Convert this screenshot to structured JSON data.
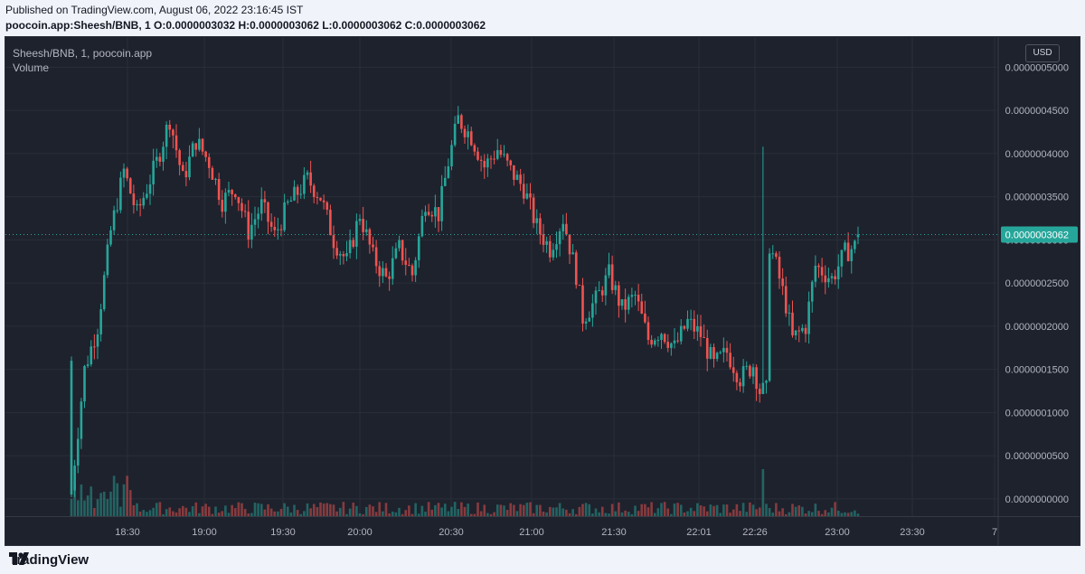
{
  "header": {
    "published": "Published on TradingView.com, August 06, 2022 23:16:45 IST",
    "symbol": "poocoin.app:Sheesh/BNB, 1",
    "o": "O:0.0000003032",
    "h": "H:0.0000003062",
    "l": "L:0.0000003062",
    "c": "C:0.0000003062"
  },
  "legend": {
    "title": "Sheesh/BNB, 1, poocoin.app",
    "volume": "Volume"
  },
  "currency_button": "USD",
  "last_price_label": "0.0000003062",
  "footer": {
    "brand": "TradingView"
  },
  "colors": {
    "up": "#26a69a",
    "down": "#ef5350",
    "background": "#1e222d",
    "grid": "#2a2e39",
    "axis_text": "#b2b5be"
  },
  "chart_data": {
    "type": "candlestick",
    "title": "Sheesh/BNB, 1, poocoin.app",
    "x_tick_labels": [
      "18:30",
      "19:00",
      "19:30",
      "20:00",
      "20:30",
      "21:00",
      "21:30",
      "22:01",
      "22:26",
      "23:00",
      "23:30",
      "7"
    ],
    "y_tick_labels": [
      "0.0000005000",
      "0.0000004500",
      "0.0000004000",
      "0.0000003500",
      "0.0000003000",
      "0.0000002500",
      "0.0000002000",
      "0.0000001500",
      "0.0000001000",
      "0.0000000500",
      "0.0000000000"
    ],
    "y_tick_values": [
      5e-07,
      4.5e-07,
      4e-07,
      3.5e-07,
      3e-07,
      2.5e-07,
      2e-07,
      1.5e-07,
      1e-07,
      5e-08,
      0
    ],
    "ylim": [
      -2e-08,
      5.35e-07
    ],
    "last_price": 3.062e-07,
    "grid": true,
    "ohlc_waypoints": [
      [
        1e-08,
        0,
        1.5e-07
      ],
      [
        1.5e-07,
        4,
        1.65e-07
      ],
      [
        2e-07,
        8,
        2.15e-07
      ],
      [
        3.1e-07,
        12,
        3.3e-07
      ],
      [
        3.8e-07,
        16,
        3.9e-07
      ],
      [
        3.3e-07,
        20,
        3.4e-07
      ],
      [
        3.9e-07,
        26,
        4e-07
      ],
      [
        4.4e-07,
        30,
        4.55e-07
      ],
      [
        3.7e-07,
        34,
        3.8e-07
      ],
      [
        4.15e-07,
        38,
        4.25e-07
      ],
      [
        3.9e-07,
        42,
        3.95e-07
      ],
      [
        3.45e-07,
        46,
        3.55e-07
      ],
      [
        3.6e-07,
        50,
        3.65e-07
      ],
      [
        3.1e-07,
        54,
        3.2e-07
      ],
      [
        3.4e-07,
        58,
        3.45e-07
      ],
      [
        3.05e-07,
        62,
        3.15e-07
      ],
      [
        3.4e-07,
        66,
        3.5e-07
      ],
      [
        3.7e-07,
        72,
        3.8e-07
      ],
      [
        3.5e-07,
        76,
        3.55e-07
      ],
      [
        3e-07,
        80,
        3.05e-07
      ],
      [
        2.75e-07,
        84,
        2.8e-07
      ],
      [
        3.3e-07,
        88,
        3.4e-07
      ],
      [
        2.8e-07,
        92,
        2.85e-07
      ],
      [
        2.55e-07,
        96,
        2.65e-07
      ],
      [
        2.9e-07,
        100,
        2.95e-07
      ],
      [
        2.6e-07,
        104,
        2.7e-07
      ],
      [
        3.45e-07,
        108,
        3.55e-07
      ],
      [
        3.3e-07,
        112,
        3.4e-07
      ],
      [
        3.9e-07,
        115,
        4e-07
      ],
      [
        4.4e-07,
        118,
        4.55e-07
      ],
      [
        4.2e-07,
        122,
        4.3e-07
      ],
      [
        3.85e-07,
        126,
        3.95e-07
      ],
      [
        4.05e-07,
        130,
        4.1e-07
      ],
      [
        3.8e-07,
        134,
        3.85e-07
      ],
      [
        3.6e-07,
        138,
        3.7e-07
      ],
      [
        3.15e-07,
        142,
        3.25e-07
      ],
      [
        2.9e-07,
        146,
        3e-07
      ],
      [
        3.25e-07,
        150,
        3.35e-07
      ],
      [
        2.6e-07,
        154,
        2.7e-07
      ],
      [
        2.1e-07,
        156,
        2.2e-07
      ],
      [
        2.3e-07,
        160,
        2.4e-07
      ],
      [
        2.6e-07,
        164,
        2.7e-07
      ],
      [
        2.2e-07,
        168,
        2.25e-07
      ],
      [
        2.35e-07,
        172,
        2.45e-07
      ],
      [
        1.85e-07,
        176,
        1.95e-07
      ],
      [
        1.95e-07,
        180,
        2e-07
      ],
      [
        1.75e-07,
        184,
        1.8e-07
      ],
      [
        2.05e-07,
        188,
        2.1e-07
      ],
      [
        1.9e-07,
        192,
        2e-07
      ],
      [
        1.55e-07,
        196,
        1.65e-07
      ],
      [
        1.7e-07,
        200,
        1.75e-07
      ],
      [
        1.4e-07,
        204,
        1.45e-07
      ],
      [
        1.55e-07,
        208,
        1.6e-07
      ],
      [
        1.25e-07,
        210,
        1.35e-07
      ],
      [
        1.25e-07,
        212,
        2.2e-07
      ],
      [
        2.95e-07,
        213,
        3.05e-07
      ],
      [
        2.7e-07,
        215,
        2.8e-07
      ],
      [
        2.25e-07,
        218,
        2.3e-07
      ],
      [
        1.85e-07,
        220,
        1.9e-07
      ],
      [
        2e-07,
        224,
        2.1e-07
      ],
      [
        2.7e-07,
        227,
        2.8e-07
      ],
      [
        2.55e-07,
        232,
        2.65e-07
      ],
      [
        2.85e-07,
        236,
        2.9e-07
      ],
      [
        2.95e-07,
        240,
        3.062e-07
      ]
    ]
  }
}
